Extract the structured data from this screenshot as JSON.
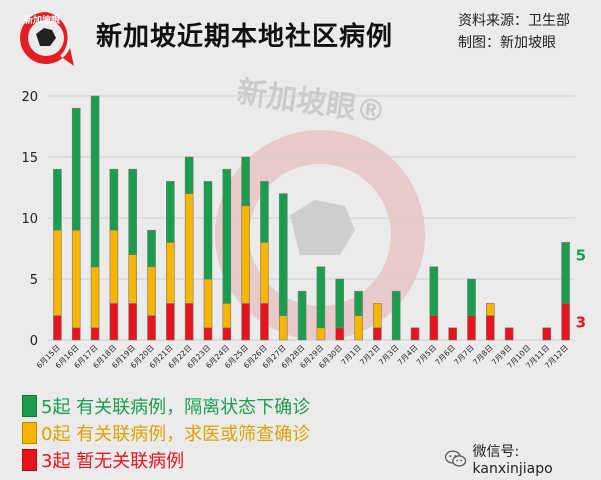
{
  "header": {
    "logo_text": "新加坡眼",
    "title": "新加坡近期本地社区病例",
    "source": "资料来源：卫生部",
    "credit": "制图：新加坡眼"
  },
  "watermark": {
    "text": "新加坡眼®"
  },
  "chart_data": {
    "type": "bar",
    "stacked": true,
    "categories": [
      "6月15日",
      "6月16日",
      "6月17日",
      "6月18日",
      "6月19日",
      "6月20日",
      "6月21日",
      "6月22日",
      "6月23日",
      "6月24日",
      "6月25日",
      "6月26日",
      "6月27日",
      "6月28日",
      "6月29日",
      "6月30日",
      "7月1日",
      "7月2日",
      "7月3日",
      "7月4日",
      "7月5日",
      "7月6日",
      "7月7日",
      "7月8日",
      "7月9日",
      "7月10日",
      "7月11日",
      "7月12日"
    ],
    "series": [
      {
        "name": "5起 有关联病例，隔离状态下确诊",
        "color": "#1a9d4c",
        "values": [
          5,
          10,
          14,
          5,
          7,
          3,
          5,
          3,
          8,
          11,
          4,
          5,
          10,
          4,
          5,
          4,
          2,
          0,
          4,
          0,
          4,
          0,
          3,
          0,
          0,
          0,
          0,
          5
        ]
      },
      {
        "name": "0起 有关联病例，求医或筛查确诊",
        "color": "#f7b500",
        "values": [
          7,
          8,
          5,
          6,
          4,
          4,
          5,
          9,
          4,
          2,
          8,
          5,
          2,
          0,
          1,
          0,
          2,
          2,
          0,
          0,
          0,
          0,
          0,
          1,
          0,
          0,
          0,
          0
        ]
      },
      {
        "name": "3起 暂无关联病例",
        "color": "#e8141b",
        "values": [
          2,
          1,
          1,
          3,
          3,
          2,
          3,
          3,
          1,
          1,
          3,
          3,
          0,
          0,
          0,
          1,
          0,
          1,
          0,
          1,
          2,
          1,
          2,
          2,
          1,
          0,
          1,
          3
        ]
      }
    ],
    "ylim": [
      0,
      20
    ],
    "yticks": [
      0,
      5,
      10,
      15,
      20
    ],
    "grid": true,
    "annotations": [
      {
        "text": "5",
        "color": "#1a9d4c"
      },
      {
        "text": "3",
        "color": "#e8141b"
      }
    ]
  },
  "footer": {
    "wechat_label": "微信号: kanxinjiapo"
  }
}
